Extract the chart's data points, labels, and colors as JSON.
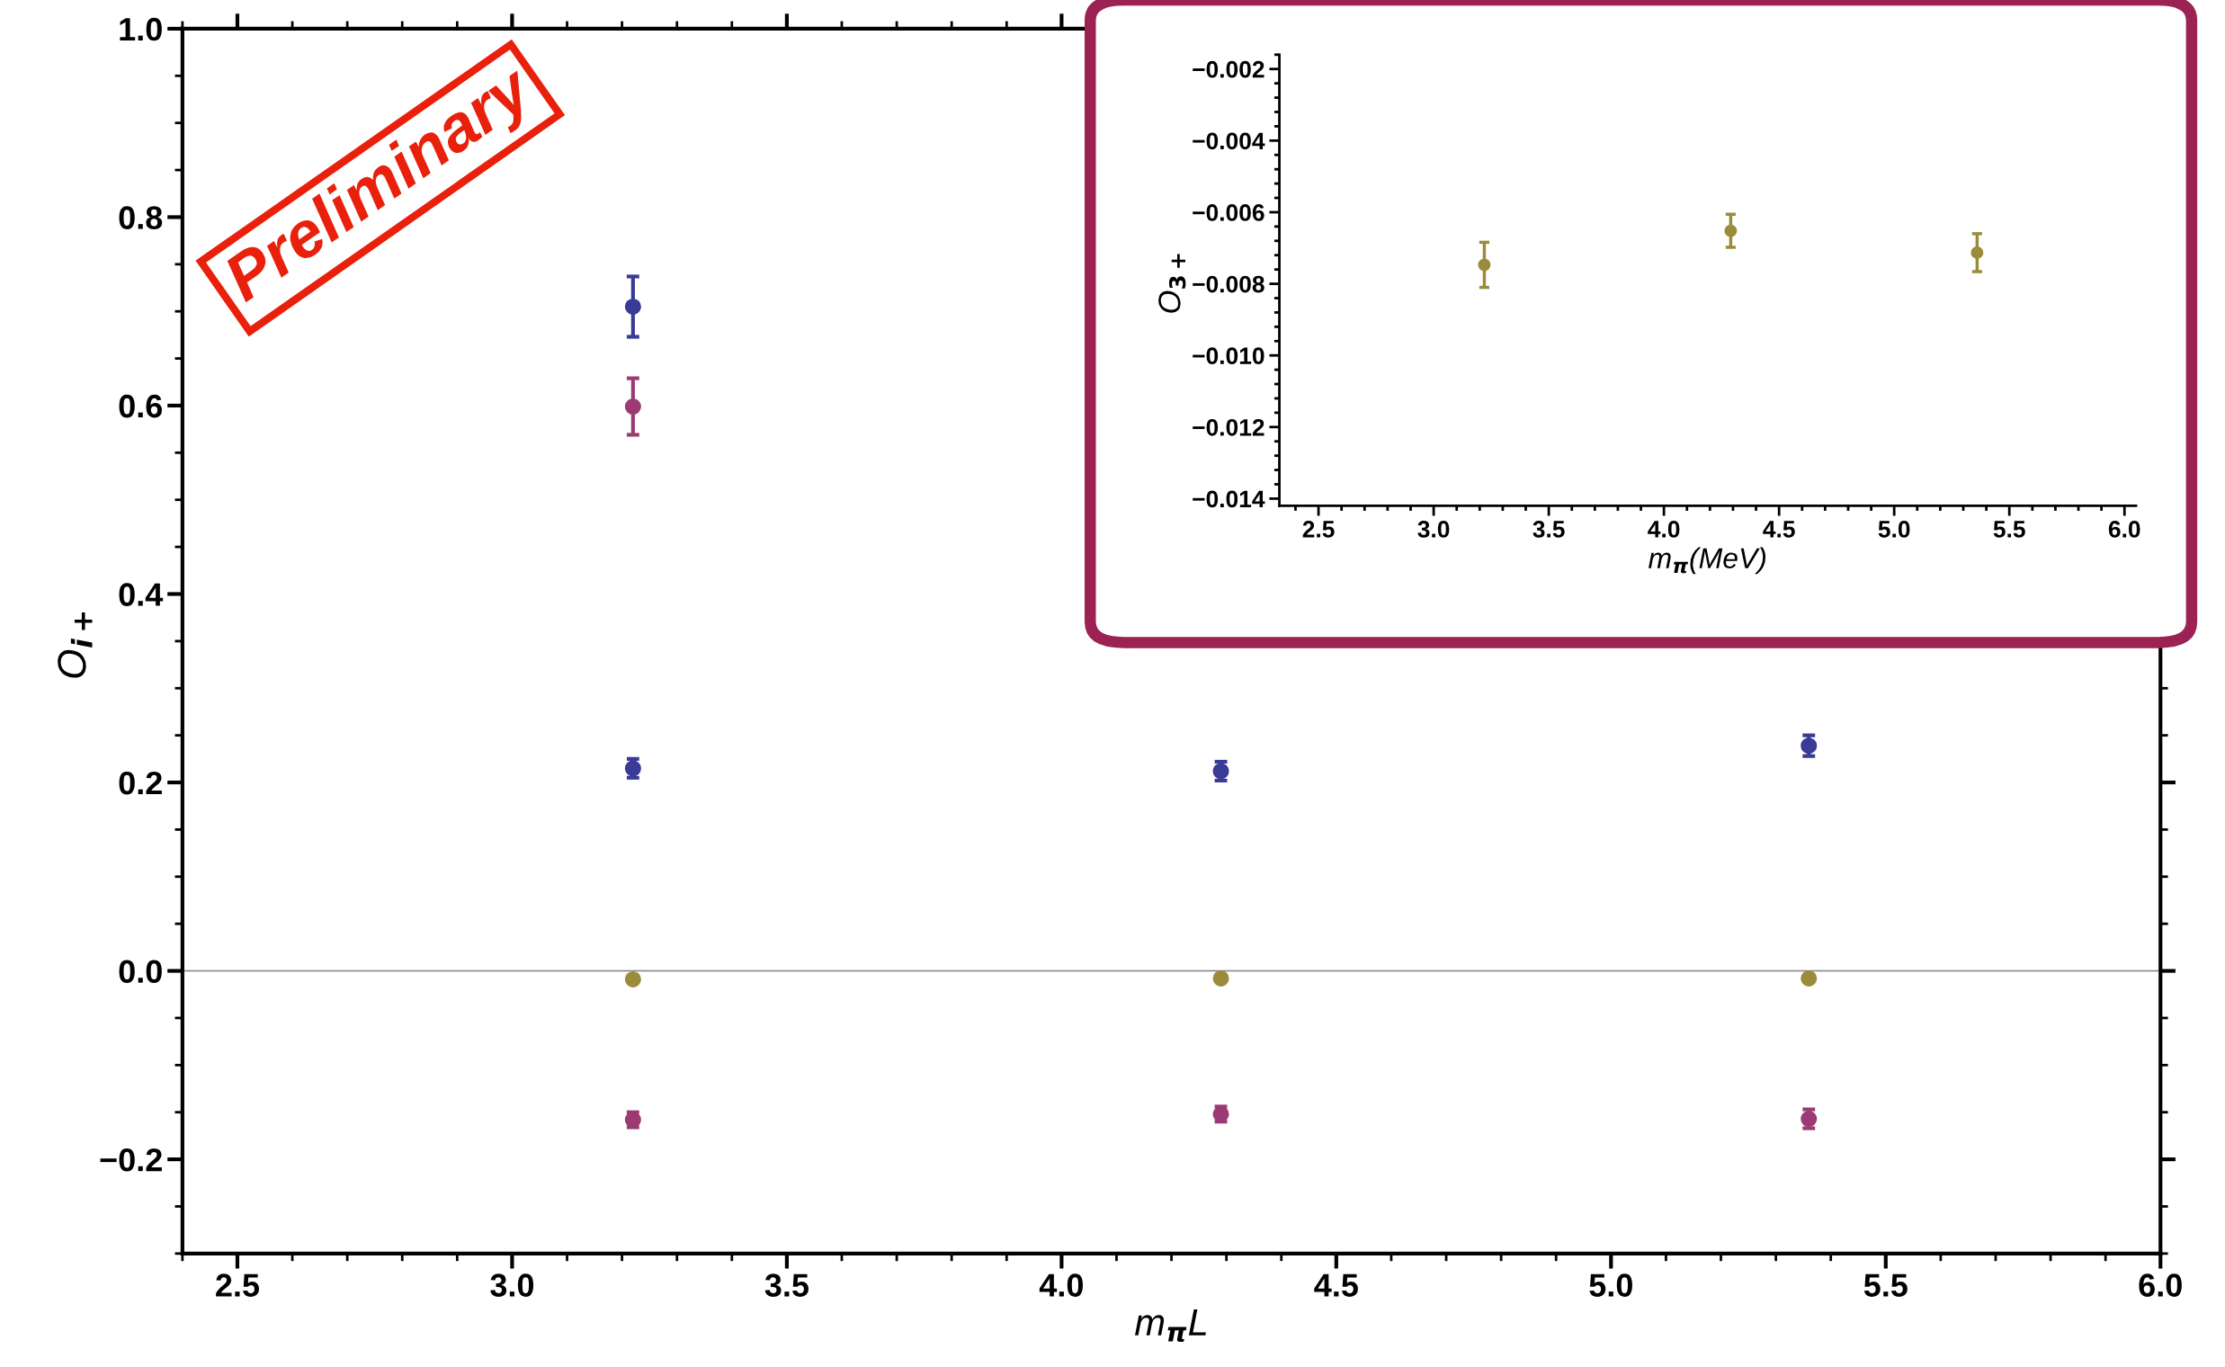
{
  "chart_data": [
    {
      "type": "scatter",
      "xlabel": "m$_{π}$L",
      "ylabel": "O$_{i+}$",
      "xlim": [
        2.4,
        6.0
      ],
      "ylim": [
        -0.3,
        1.0
      ],
      "xticks": [
        {
          "value": 2.5,
          "label": "2.5"
        },
        {
          "value": 3.0,
          "label": "3.0"
        },
        {
          "value": 3.5,
          "label": "3.5"
        },
        {
          "value": 4.0,
          "label": "4.0"
        },
        {
          "value": 4.5,
          "label": "4.5"
        },
        {
          "value": 5.0,
          "label": "5.0"
        },
        {
          "value": 5.5,
          "label": "5.5"
        },
        {
          "value": 6.0,
          "label": "6.0"
        }
      ],
      "yticks": [
        {
          "value": -0.2,
          "label": "−0.2"
        },
        {
          "value": 0.0,
          "label": "0.0"
        },
        {
          "value": 0.2,
          "label": "0.2"
        },
        {
          "value": 0.4,
          "label": "0.4"
        },
        {
          "value": 0.6,
          "label": "0.6"
        },
        {
          "value": 0.8,
          "label": "0.8"
        },
        {
          "value": 1.0,
          "label": "1.0"
        }
      ],
      "marker": "circle",
      "ref_lines": [
        {
          "axis": "y",
          "value": 0,
          "color": "#808080"
        }
      ],
      "annotations": [
        "Preliminary"
      ],
      "series": [
        {
          "color": "#3a3a97",
          "x": [
            3.22,
            3.22,
            4.29,
            5.36
          ],
          "values": [
            0.705,
            0.215,
            0.212,
            0.239
          ],
          "errors": [
            0.032,
            0.01,
            0.01,
            0.011
          ]
        },
        {
          "color": "#9b3a73",
          "x": [
            3.22,
            3.22,
            4.29,
            5.36
          ],
          "values": [
            0.599,
            -0.158,
            -0.152,
            -0.157
          ],
          "errors": [
            0.03,
            0.008,
            0.008,
            0.01
          ]
        },
        {
          "color": "#9a8c3a",
          "x": [
            3.22,
            4.29,
            5.36
          ],
          "values": [
            -0.009,
            -0.008,
            -0.008
          ]
        }
      ]
    },
    {
      "type": "scatter",
      "xlabel": "m$_{π}$(MeV)",
      "ylabel": "O$_{3+}$",
      "xlim": [
        2.33,
        6.05
      ],
      "ylim": [
        -0.0142,
        -0.0016
      ],
      "xticks": [
        {
          "value": 2.5,
          "label": "2.5"
        },
        {
          "value": 3.0,
          "label": "3.0"
        },
        {
          "value": 3.5,
          "label": "3.5"
        },
        {
          "value": 4.0,
          "label": "4.0"
        },
        {
          "value": 4.5,
          "label": "4.5"
        },
        {
          "value": 5.0,
          "label": "5.0"
        },
        {
          "value": 5.5,
          "label": "5.5"
        },
        {
          "value": 6.0,
          "label": "6.0"
        }
      ],
      "yticks": [
        {
          "value": -0.014,
          "label": "−0.014"
        },
        {
          "value": -0.012,
          "label": "−0.012"
        },
        {
          "value": -0.01,
          "label": "−0.010"
        },
        {
          "value": -0.008,
          "label": "−0.008"
        },
        {
          "value": -0.006,
          "label": "−0.006"
        },
        {
          "value": -0.004,
          "label": "−0.004"
        },
        {
          "value": -0.002,
          "label": "−0.002"
        }
      ],
      "marker": "circle",
      "series": [
        {
          "color": "#9a8c3a",
          "x": [
            3.22,
            4.29,
            5.36
          ],
          "values": [
            -0.00747,
            -0.00652,
            -0.00713
          ],
          "errors": [
            0.00063,
            0.00046,
            0.00053
          ]
        }
      ]
    }
  ]
}
